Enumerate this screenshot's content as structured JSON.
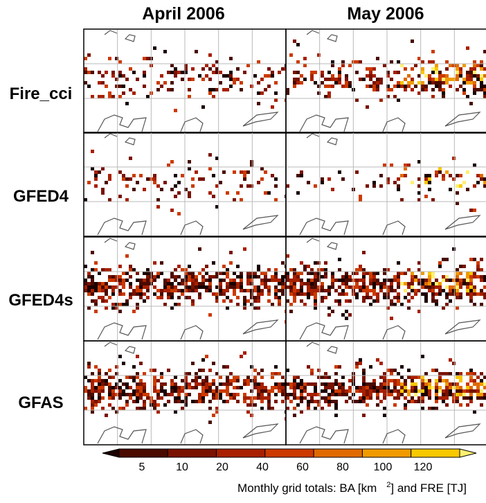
{
  "chart_data": {
    "type": "heatmap",
    "columns": [
      "April 2006",
      "May 2006"
    ],
    "rows": [
      "Fire_cci",
      "GFED4",
      "GFED4s",
      "GFAS"
    ],
    "colorbar": {
      "ticks": [
        "5",
        "10",
        "20",
        "40",
        "60",
        "80",
        "100",
        "120"
      ],
      "colors": [
        "#1a0000",
        "#4a0a00",
        "#7a1200",
        "#a82000",
        "#cc3a00",
        "#e06a00",
        "#f09a00",
        "#f8c800",
        "#fff070"
      ],
      "extend": "both"
    },
    "caption_parts": [
      "Monthly grid totals: BA [km",
      "2",
      "] and FRE [TJ]"
    ],
    "density": {
      "Fire_cci": [
        [
          0.25,
          0.35
        ],
        [
          0.25,
          0.7
        ]
      ],
      "GFED4": [
        [
          0.15,
          0.12
        ],
        [
          0.1,
          0.22
        ]
      ],
      "GFED4s": [
        [
          0.7,
          0.6
        ],
        [
          0.75,
          0.85
        ]
      ],
      "GFAS": [
        [
          0.7,
          0.55
        ],
        [
          0.75,
          0.85
        ]
      ]
    }
  }
}
